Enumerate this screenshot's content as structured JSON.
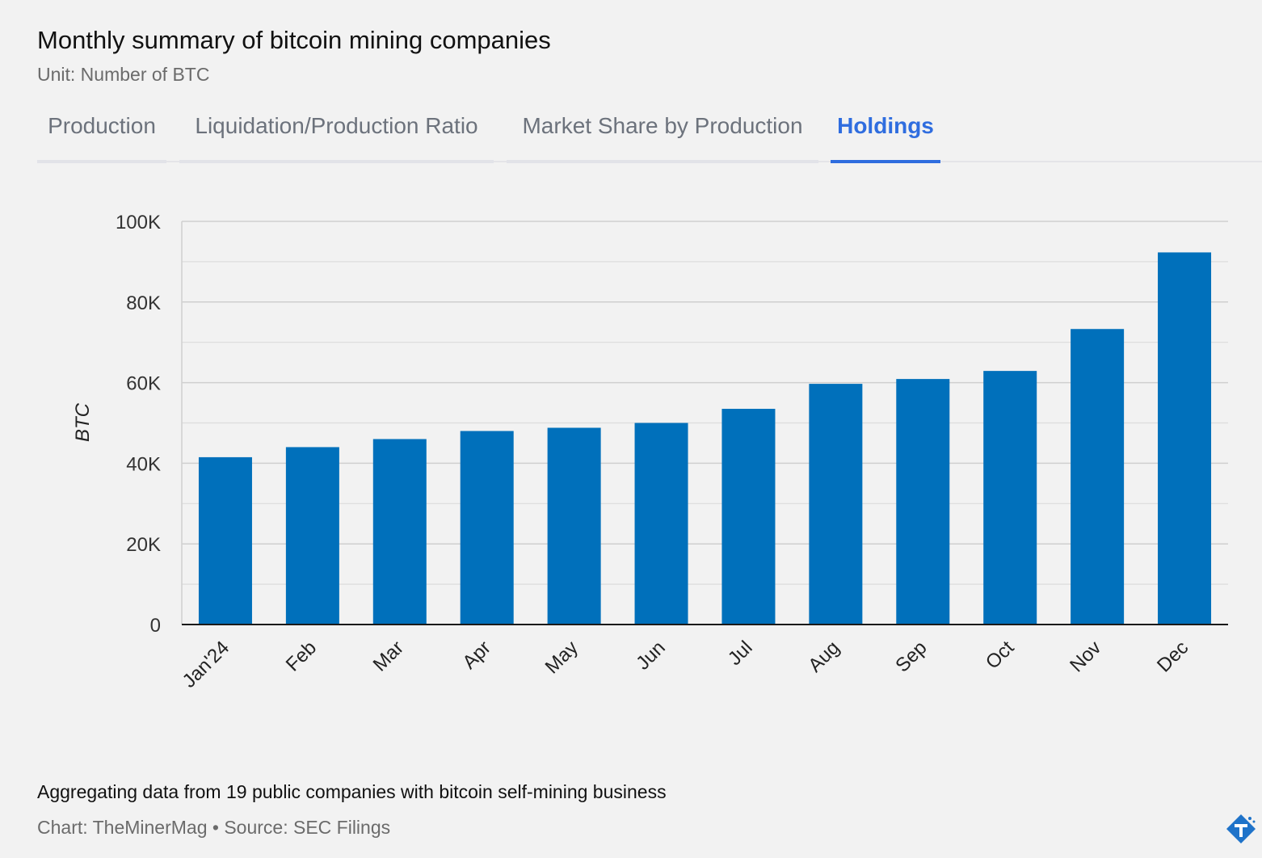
{
  "header": {
    "title": "Monthly summary of bitcoin mining companies",
    "subtitle": "Unit: Number of BTC"
  },
  "tabs": [
    {
      "label": "Production",
      "active": false
    },
    {
      "label": "Liquidation/Production Ratio",
      "active": false
    },
    {
      "label": "Market Share by Production",
      "active": false
    },
    {
      "label": "Holdings",
      "active": true
    }
  ],
  "chart_data": {
    "type": "bar",
    "title": "",
    "xlabel": "",
    "ylabel": "BTC",
    "categories": [
      "Jan'24",
      "Feb",
      "Mar",
      "Apr",
      "May",
      "Jun",
      "Jul",
      "Aug",
      "Sep",
      "Oct",
      "Nov",
      "Dec"
    ],
    "series": [
      {
        "values": [
          41500,
          44000,
          46000,
          48000,
          48800,
          50000,
          53500,
          59700,
          60900,
          62900,
          73300,
          92300
        ]
      }
    ],
    "ylim": [
      0,
      100000
    ],
    "yticks": [
      0,
      20000,
      40000,
      60000,
      80000,
      100000
    ],
    "ytick_labels": [
      "0",
      "20K",
      "40K",
      "60K",
      "80K",
      "100K"
    ],
    "grid": true,
    "bar_color": "#0070bb"
  },
  "footer": {
    "note": "Aggregating data from 19 public companies with bitcoin self-mining business",
    "source": "Chart: TheMinerMag • Source: SEC Filings"
  },
  "colors": {
    "accent": "#2f6ddf",
    "bar": "#0070bb",
    "logo": "#1f73c9"
  },
  "icons": {
    "logo": "theminermag-logo-icon"
  }
}
